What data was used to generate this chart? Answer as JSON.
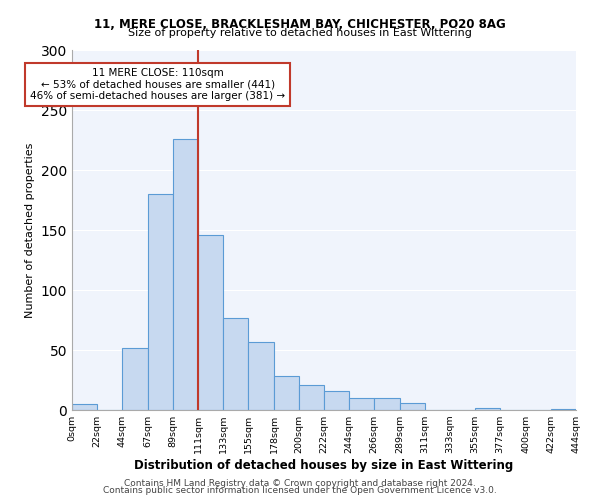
{
  "title1": "11, MERE CLOSE, BRACKLESHAM BAY, CHICHESTER, PO20 8AG",
  "title2": "Size of property relative to detached houses in East Wittering",
  "xlabel": "Distribution of detached houses by size in East Wittering",
  "ylabel": "Number of detached properties",
  "bin_edges": [
    0,
    22,
    44,
    67,
    89,
    111,
    133,
    155,
    178,
    200,
    222,
    244,
    266,
    289,
    311,
    333,
    355,
    377,
    400,
    422,
    444
  ],
  "bin_labels": [
    "0sqm",
    "22sqm",
    "44sqm",
    "67sqm",
    "89sqm",
    "111sqm",
    "133sqm",
    "155sqm",
    "178sqm",
    "200sqm",
    "222sqm",
    "244sqm",
    "266sqm",
    "289sqm",
    "311sqm",
    "333sqm",
    "355sqm",
    "377sqm",
    "400sqm",
    "422sqm",
    "444sqm"
  ],
  "counts": [
    5,
    0,
    52,
    180,
    226,
    146,
    77,
    57,
    28,
    21,
    16,
    10,
    10,
    6,
    0,
    0,
    2,
    0,
    0,
    1
  ],
  "bar_color": "#c7d9f0",
  "bar_edge_color": "#5b9bd5",
  "property_size": 110,
  "vline_x": 111,
  "vline_color": "#c0392b",
  "annotation_title": "11 MERE CLOSE: 110sqm",
  "annotation_line1": "← 53% of detached houses are smaller (441)",
  "annotation_line2": "46% of semi-detached houses are larger (381) →",
  "annotation_box_color": "#c0392b",
  "ylim": [
    0,
    300
  ],
  "yticks": [
    0,
    50,
    100,
    150,
    200,
    250,
    300
  ],
  "bg_color": "#f0f4fc",
  "footer1": "Contains HM Land Registry data © Crown copyright and database right 2024.",
  "footer2": "Contains public sector information licensed under the Open Government Licence v3.0."
}
